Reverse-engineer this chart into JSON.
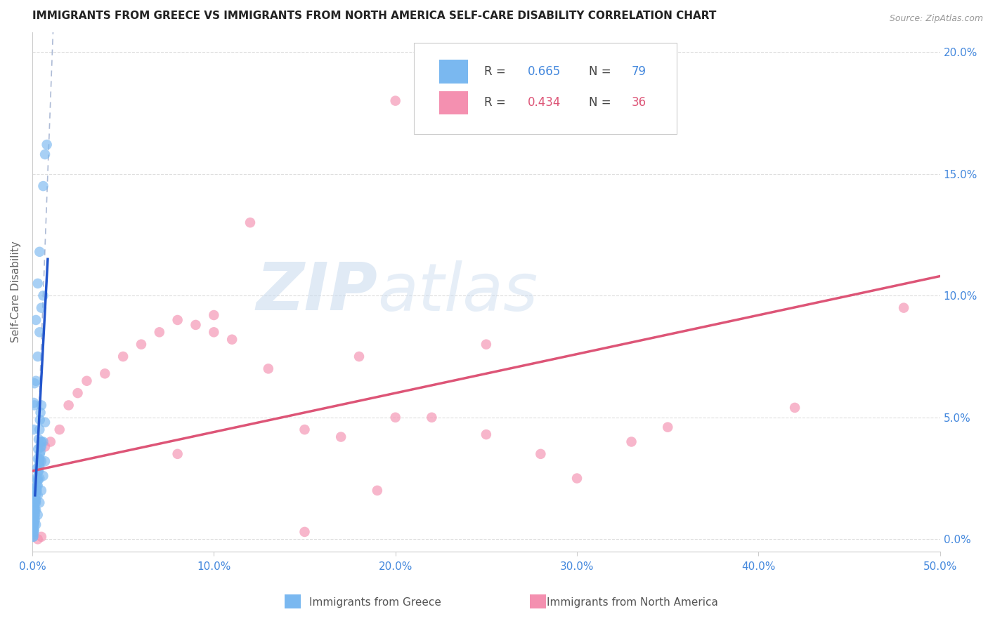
{
  "title": "IMMIGRANTS FROM GREECE VS IMMIGRANTS FROM NORTH AMERICA SELF-CARE DISABILITY CORRELATION CHART",
  "source": "Source: ZipAtlas.com",
  "ylabel": "Self-Care Disability",
  "ylabel_right_ticks": [
    "0.0%",
    "5.0%",
    "10.0%",
    "15.0%",
    "20.0%"
  ],
  "ylabel_right_vals": [
    0.0,
    0.05,
    0.1,
    0.15,
    0.2
  ],
  "xlim": [
    0.0,
    0.5
  ],
  "ylim": [
    -0.005,
    0.208
  ],
  "legend_r1_label": "R = ",
  "legend_r1_val": "0.665",
  "legend_n1_label": "N = ",
  "legend_n1_val": "79",
  "legend_r2_label": "R = ",
  "legend_r2_val": "0.434",
  "legend_n2_label": "N = ",
  "legend_n2_val": "36",
  "color_blue": "#7ab8f0",
  "color_pink": "#f490b0",
  "color_blue_line": "#2255cc",
  "color_pink_line": "#dd5577",
  "color_dashed": "#99aacc",
  "watermark_zip": "ZIP",
  "watermark_atlas": "atlas",
  "greece_x": [
    0.0005,
    0.0008,
    0.001,
    0.0012,
    0.0015,
    0.002,
    0.0022,
    0.0025,
    0.003,
    0.0032,
    0.0035,
    0.004,
    0.0042,
    0.0045,
    0.005,
    0.0005,
    0.001,
    0.0015,
    0.002,
    0.0025,
    0.003,
    0.0035,
    0.004,
    0.0045,
    0.005,
    0.0006,
    0.0008,
    0.001,
    0.0012,
    0.0015,
    0.002,
    0.0022,
    0.0025,
    0.003,
    0.0032,
    0.0035,
    0.004,
    0.0042,
    0.0045,
    0.005,
    0.0006,
    0.001,
    0.0015,
    0.002,
    0.003,
    0.004,
    0.005,
    0.0007,
    0.0012,
    0.002,
    0.003,
    0.004,
    0.005,
    0.006,
    0.0005,
    0.001,
    0.0015,
    0.002,
    0.003,
    0.004,
    0.005,
    0.006,
    0.007,
    0.0008,
    0.0012,
    0.002,
    0.003,
    0.004,
    0.006,
    0.007,
    0.008,
    0.0005,
    0.001,
    0.002,
    0.003,
    0.004,
    0.005,
    0.006,
    0.007
  ],
  "greece_y": [
    0.005,
    0.008,
    0.01,
    0.012,
    0.015,
    0.018,
    0.02,
    0.022,
    0.025,
    0.028,
    0.03,
    0.033,
    0.035,
    0.038,
    0.04,
    0.003,
    0.007,
    0.012,
    0.016,
    0.02,
    0.024,
    0.028,
    0.032,
    0.036,
    0.04,
    0.004,
    0.006,
    0.009,
    0.013,
    0.017,
    0.021,
    0.025,
    0.029,
    0.033,
    0.037,
    0.041,
    0.045,
    0.049,
    0.052,
    0.055,
    0.002,
    0.006,
    0.01,
    0.015,
    0.022,
    0.03,
    0.038,
    0.045,
    0.055,
    0.065,
    0.075,
    0.085,
    0.095,
    0.1,
    0.001,
    0.004,
    0.008,
    0.012,
    0.018,
    0.025,
    0.032,
    0.04,
    0.048,
    0.056,
    0.064,
    0.09,
    0.105,
    0.118,
    0.145,
    0.158,
    0.162,
    0.001,
    0.003,
    0.006,
    0.01,
    0.015,
    0.02,
    0.026,
    0.032
  ],
  "north_america_x": [
    0.003,
    0.005,
    0.007,
    0.01,
    0.015,
    0.02,
    0.025,
    0.03,
    0.04,
    0.05,
    0.06,
    0.07,
    0.08,
    0.09,
    0.1,
    0.11,
    0.12,
    0.13,
    0.15,
    0.17,
    0.18,
    0.19,
    0.2,
    0.22,
    0.25,
    0.28,
    0.3,
    0.33,
    0.35,
    0.42,
    0.48,
    0.15,
    0.2,
    0.25,
    0.1,
    0.08
  ],
  "north_america_y": [
    0.0,
    0.001,
    0.038,
    0.04,
    0.045,
    0.055,
    0.06,
    0.065,
    0.068,
    0.075,
    0.08,
    0.085,
    0.09,
    0.088,
    0.085,
    0.082,
    0.13,
    0.07,
    0.045,
    0.042,
    0.075,
    0.02,
    0.18,
    0.05,
    0.043,
    0.035,
    0.025,
    0.04,
    0.046,
    0.054,
    0.095,
    0.003,
    0.05,
    0.08,
    0.092,
    0.035
  ],
  "greece_line_x": [
    0.0015,
    0.0085
  ],
  "greece_line_y": [
    0.018,
    0.115
  ],
  "dashed_line_x": [
    0.001,
    0.012
  ],
  "dashed_line_y": [
    0.0,
    0.22
  ],
  "pink_line_x": [
    0.0,
    0.5
  ],
  "pink_line_y": [
    0.028,
    0.108
  ]
}
